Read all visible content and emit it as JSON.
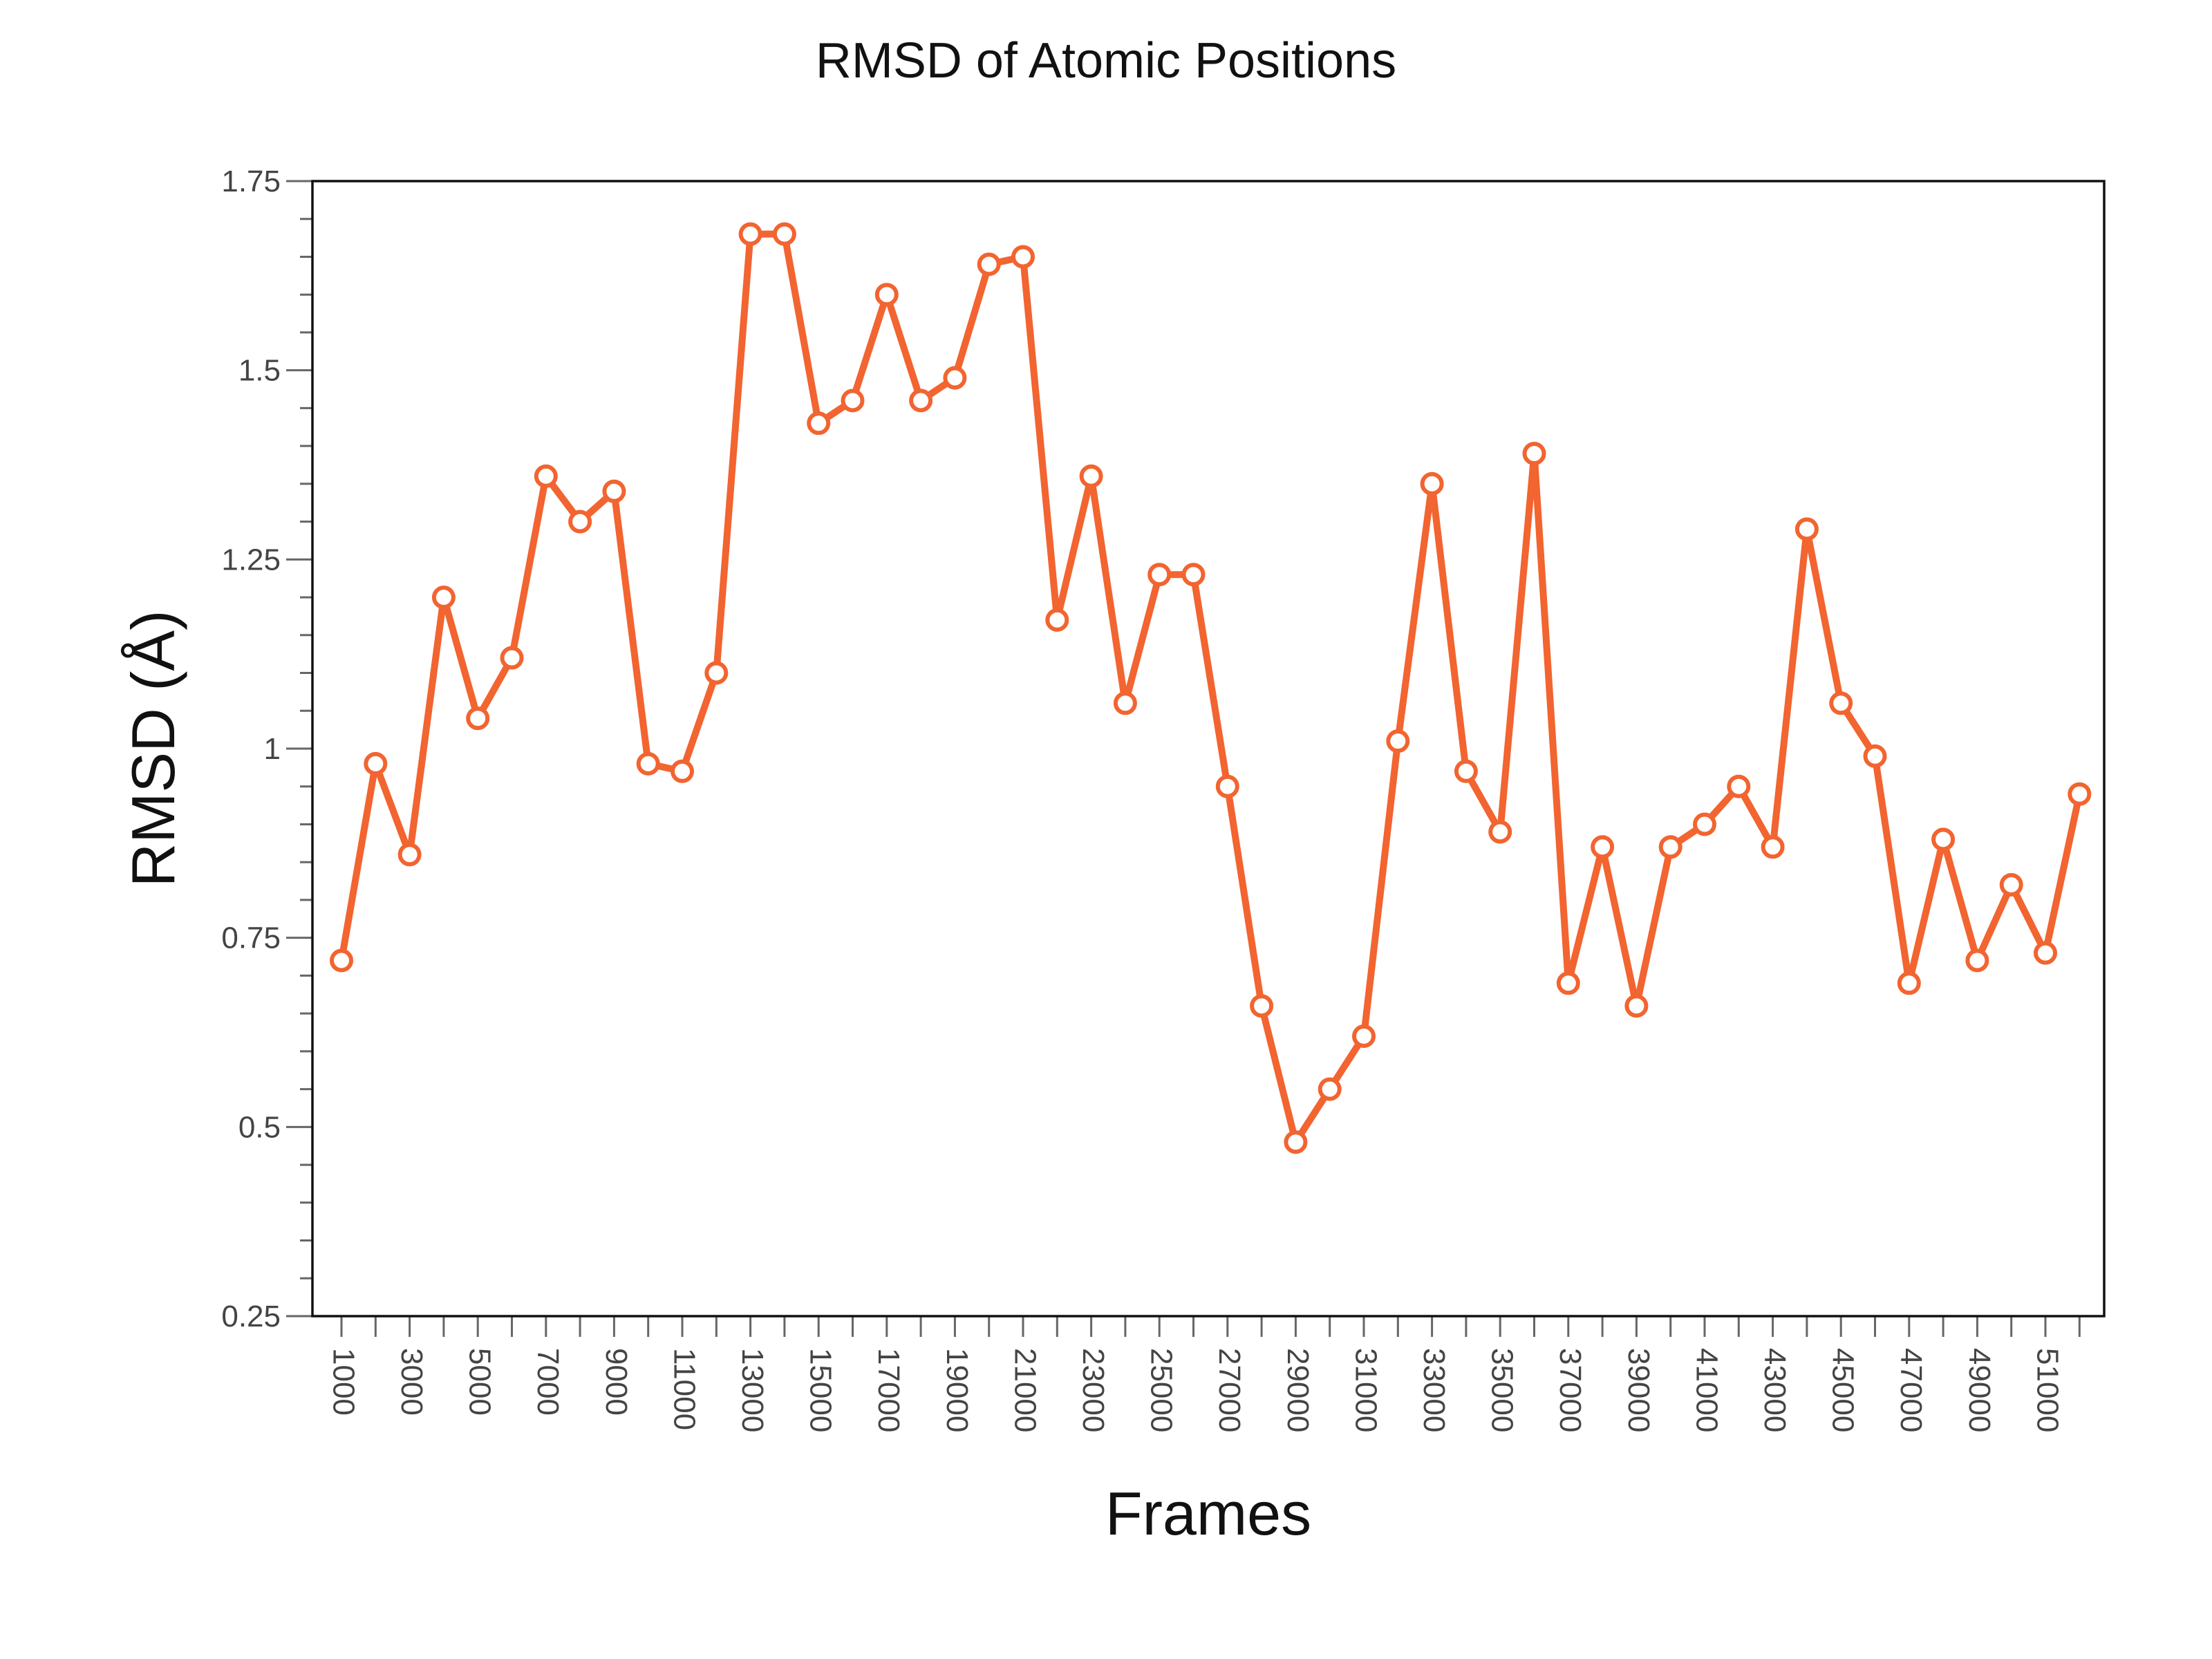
{
  "chart_data": {
    "type": "line",
    "title": "RMSD of Atomic Positions",
    "xlabel": "Frames",
    "ylabel": "RMSD (Å)",
    "ylim": [
      0.25,
      1.75
    ],
    "yticks": [
      "0.25",
      "0.5",
      "0.75",
      "1",
      "1.25",
      "1.5",
      "1.75"
    ],
    "xtick_labels": [
      "1000",
      "3000",
      "5000",
      "7000",
      "9000",
      "11000",
      "13000",
      "15000",
      "17000",
      "19000",
      "21000",
      "23000",
      "25000",
      "27000",
      "29000",
      "31000",
      "33000",
      "35000",
      "37000",
      "39000",
      "41000",
      "43000",
      "45000",
      "47000",
      "49000",
      "51000"
    ],
    "grid": false,
    "series": [
      {
        "color": "#f26430",
        "x": [
          1000,
          2000,
          3000,
          4000,
          5000,
          6000,
          7000,
          8000,
          9000,
          10000,
          11000,
          12000,
          13000,
          14000,
          15000,
          16000,
          17000,
          18000,
          19000,
          20000,
          21000,
          22000,
          23000,
          24000,
          25000,
          26000,
          27000,
          28000,
          29000,
          30000,
          31000,
          32000,
          33000,
          34000,
          35000,
          36000,
          37000,
          38000,
          39000,
          40000,
          41000,
          42000,
          43000,
          44000,
          45000,
          46000,
          47000,
          48000,
          49000,
          50000,
          51000,
          52000
        ],
        "values": [
          0.72,
          0.98,
          0.86,
          1.2,
          1.04,
          1.12,
          1.36,
          1.3,
          1.34,
          0.98,
          0.97,
          1.1,
          1.68,
          1.68,
          1.43,
          1.46,
          1.6,
          1.46,
          1.49,
          1.64,
          1.65,
          1.17,
          1.36,
          1.06,
          1.23,
          1.23,
          0.95,
          0.66,
          0.48,
          0.55,
          0.62,
          1.01,
          1.35,
          0.97,
          0.89,
          1.39,
          0.69,
          0.87,
          0.66,
          0.87,
          0.9,
          0.95,
          0.87,
          1.29,
          1.06,
          0.99,
          0.69,
          0.88,
          0.72,
          0.82,
          0.73,
          0.94
        ]
      }
    ]
  }
}
